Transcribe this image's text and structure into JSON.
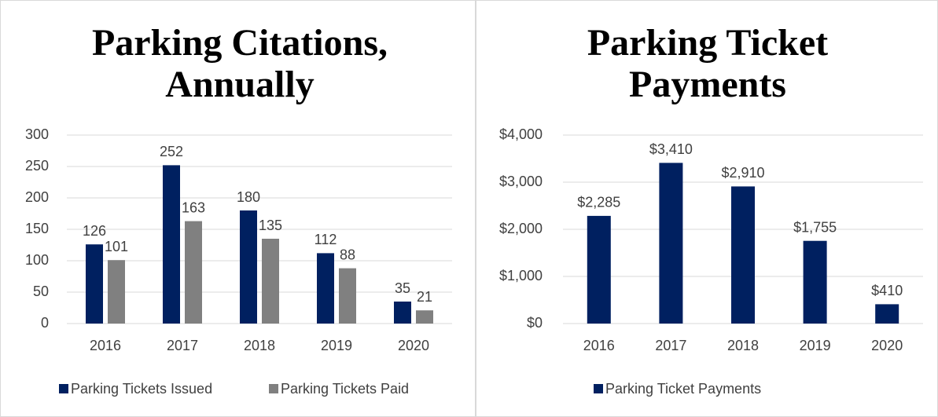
{
  "chart_data": [
    {
      "type": "bar",
      "title": "Parking Citations, Annually",
      "categories": [
        "2016",
        "2017",
        "2018",
        "2019",
        "2020"
      ],
      "series": [
        {
          "name": "Parking Tickets Issued",
          "color": "#002060",
          "values": [
            126,
            252,
            180,
            112,
            35
          ]
        },
        {
          "name": "Parking Tickets Paid",
          "color": "#808080",
          "values": [
            101,
            163,
            135,
            88,
            21
          ]
        }
      ],
      "ylim": [
        0,
        300
      ],
      "yticks": [
        0,
        50,
        100,
        150,
        200,
        250,
        300
      ],
      "grid": true,
      "legend": "bottom"
    },
    {
      "type": "bar",
      "title": "Parking Ticket Payments",
      "categories": [
        "2016",
        "2017",
        "2018",
        "2019",
        "2020"
      ],
      "series": [
        {
          "name": "Parking Ticket Payments",
          "color": "#002060",
          "values": [
            2285,
            3410,
            2910,
            1755,
            410
          ],
          "value_labels": [
            "$2,285",
            "$3,410",
            "$2,910",
            "$1,755",
            "$410"
          ]
        }
      ],
      "ylim": [
        0,
        4000
      ],
      "yticks": [
        {
          "value": 0,
          "label": "$0"
        },
        {
          "value": 1000,
          "label": "$1,000"
        },
        {
          "value": 2000,
          "label": "$2,000"
        },
        {
          "value": 3000,
          "label": "$3,000"
        },
        {
          "value": 4000,
          "label": "$4,000"
        }
      ],
      "grid": true,
      "legend": "bottom"
    }
  ]
}
